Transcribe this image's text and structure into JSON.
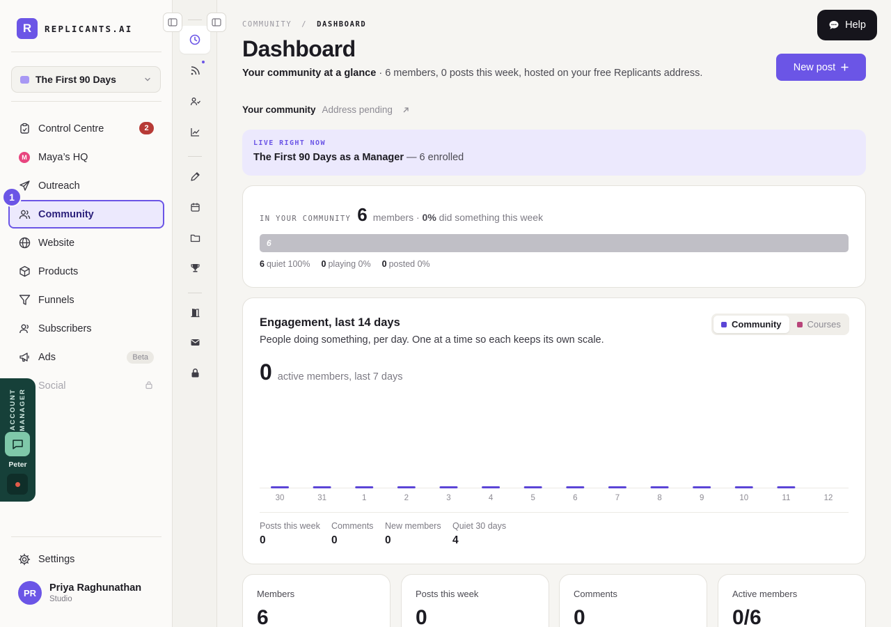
{
  "brand": {
    "mark": "R",
    "name": "REPLICANTS.AI",
    "accent": "#6b55e6"
  },
  "course_selector": {
    "label": "The First 90 Days"
  },
  "sidebar": {
    "items": [
      {
        "label": "Control Centre",
        "icon": "clipboard-icon",
        "badge": "2"
      },
      {
        "label": "Maya’s HQ",
        "icon": "maya-avatar-icon",
        "mark": "M"
      },
      {
        "label": "Outreach",
        "icon": "send-icon"
      },
      {
        "label": "Community",
        "icon": "users-icon",
        "active": true
      },
      {
        "label": "Website",
        "icon": "globe-icon"
      },
      {
        "label": "Products",
        "icon": "box-icon"
      },
      {
        "label": "Funnels",
        "icon": "funnel-icon"
      },
      {
        "label": "Subscribers",
        "icon": "user-icon"
      },
      {
        "label": "Ads",
        "icon": "megaphone-icon",
        "badge_text": "Beta"
      },
      {
        "label": "Social",
        "icon": "share-icon",
        "locked": true
      }
    ],
    "step_marker": "1",
    "settings_label": "Settings",
    "user": {
      "initials": "PR",
      "name": "Priya Raghunathan",
      "plan": "Studio"
    }
  },
  "account_manager": {
    "title": "ACCOUNT MANAGER",
    "name": "Peter"
  },
  "breadcrumb": {
    "parent": "COMMUNITY",
    "separator": "/",
    "current": "DASHBOARD"
  },
  "header": {
    "title": "Dashboard",
    "subtitle_strong": "Your community at a glance",
    "subtitle_rest": " · 6 members, 0 posts this week, hosted on your free Replicants address.",
    "new_post_label": "New post",
    "help_label": "Help"
  },
  "address": {
    "label": "Your community",
    "value": "Address pending"
  },
  "live": {
    "tag": "LIVE RIGHT NOW",
    "course": "The First 90 Days as a Manager",
    "enrolled": " — 6 enrolled"
  },
  "community_card": {
    "label": "IN YOUR COMMUNITY",
    "members": "6",
    "members_text": "members · ",
    "active_pct": "0%",
    "active_text": " did something this week",
    "bar_label": "6",
    "quiet_fraction": 1.0,
    "stats": [
      {
        "n": "6",
        "label": "quiet 100%"
      },
      {
        "n": "0",
        "label": "playing 0%"
      },
      {
        "n": "0",
        "label": "posted 0%"
      }
    ]
  },
  "engagement": {
    "title": "Engagement, last 14 days",
    "subtitle": "People doing something, per day. One at a time so each keeps its own scale.",
    "tabs": [
      {
        "label": "Community",
        "color": "#5b45d6",
        "active": true
      },
      {
        "label": "Courses",
        "color": "#b8457a",
        "active": false
      }
    ],
    "big_number": "0",
    "big_label": "active members, last 7 days",
    "mini_stats": [
      {
        "label": "Posts this week",
        "value": "0"
      },
      {
        "label": "Comments",
        "value": "0"
      },
      {
        "label": "New members",
        "value": "0"
      },
      {
        "label": "Quiet 30 days",
        "value": "4"
      }
    ]
  },
  "chart_data": {
    "type": "bar",
    "categories": [
      "30",
      "31",
      "1",
      "2",
      "3",
      "4",
      "5",
      "6",
      "7",
      "8",
      "9",
      "10",
      "11",
      "12"
    ],
    "values": [
      0,
      0,
      0,
      0,
      0,
      0,
      0,
      0,
      0,
      0,
      0,
      0,
      0,
      null
    ],
    "title": "Engagement, last 14 days",
    "xlabel": "",
    "ylabel": "",
    "color": "#5b45d6",
    "grid": false
  },
  "kpis": [
    {
      "label": "Members",
      "value": "6"
    },
    {
      "label": "Posts this week",
      "value": "0"
    },
    {
      "label": "Comments",
      "value": "0"
    },
    {
      "label": "Active members",
      "value": "0/6"
    }
  ]
}
